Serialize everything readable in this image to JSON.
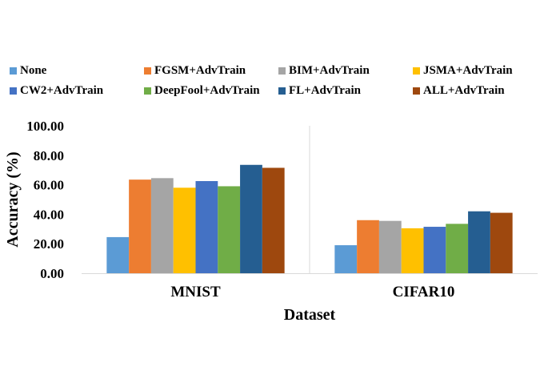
{
  "chart_data": {
    "type": "bar",
    "title": "",
    "xlabel": "Dataset",
    "ylabel": "Accuracy (%)",
    "ylim": [
      0,
      100
    ],
    "yticks": [
      "0.00",
      "20.00",
      "40.00",
      "60.00",
      "80.00",
      "100.00"
    ],
    "categories": [
      "MNIST",
      "CIFAR10"
    ],
    "legend_position": "top",
    "grid": false,
    "series": [
      {
        "name": "None",
        "color": "#5B9BD5",
        "values": [
          24.5,
          19.0
        ]
      },
      {
        "name": "FGSM+AdvTrain",
        "color": "#ED7D31",
        "values": [
          63.5,
          36.0
        ]
      },
      {
        "name": "BIM+AdvTrain",
        "color": "#A5A5A5",
        "values": [
          64.5,
          35.5
        ]
      },
      {
        "name": "JSMA+AdvTrain",
        "color": "#FFC000",
        "values": [
          58.0,
          30.5
        ]
      },
      {
        "name": "CW2+AdvTrain",
        "color": "#4472C4",
        "values": [
          62.5,
          31.5
        ]
      },
      {
        "name": "DeepFool+AdvTrain",
        "color": "#70AD47",
        "values": [
          59.0,
          33.5
        ]
      },
      {
        "name": "FL+AdvTrain",
        "color": "#255E91",
        "values": [
          73.5,
          42.0
        ]
      },
      {
        "name": "ALL+AdvTrain",
        "color": "#9E480E",
        "values": [
          71.5,
          41.0
        ]
      }
    ]
  }
}
